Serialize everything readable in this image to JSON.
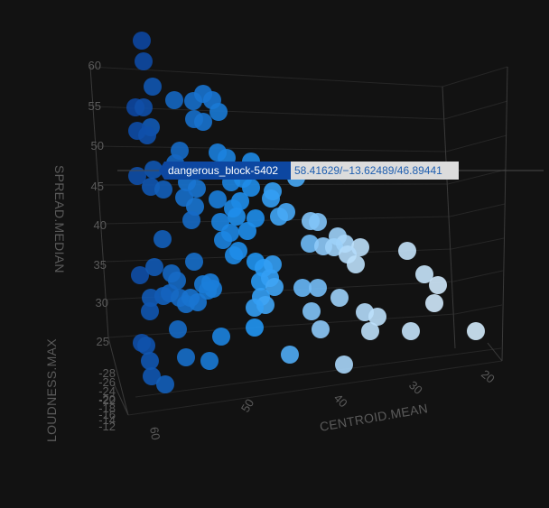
{
  "chart_data": {
    "type": "scatter",
    "dimensions": "3d",
    "x_axis": {
      "label": "CENTROID.MEAN",
      "ticks": [
        "60",
        "50",
        "40",
        "30",
        "20"
      ]
    },
    "y_axis": {
      "label": "LOUDNESS.MAX",
      "ticks": [
        "-28",
        "-26",
        "-24",
        "-22",
        "-20",
        "-18",
        "-16",
        "-14",
        "-12"
      ]
    },
    "z_axis": {
      "label": "SPREAD.MEDIAN",
      "ticks": [
        "60",
        "55",
        "50",
        "45",
        "40",
        "35",
        "30",
        "25"
      ]
    },
    "color_scale": {
      "low": "#0d47a1",
      "mid": "#2196f3",
      "high": "#e3f2fd"
    },
    "hover": {
      "name": "dangerous_block-5402",
      "value": "58.41629/−13.62489/46.89441",
      "name_bg": "#0d47a1",
      "value_bg": "#dcdcdc"
    },
    "points": [
      {
        "sx": 157,
        "sy": 45,
        "c": 0.0
      },
      {
        "sx": 159,
        "sy": 68,
        "c": 0.02
      },
      {
        "sx": 169,
        "sy": 96,
        "c": 0.1
      },
      {
        "sx": 150,
        "sy": 119,
        "c": 0.0
      },
      {
        "sx": 159,
        "sy": 119,
        "c": 0.05
      },
      {
        "sx": 167,
        "sy": 141,
        "c": 0.12
      },
      {
        "sx": 152,
        "sy": 145,
        "c": 0.03
      },
      {
        "sx": 163,
        "sy": 150,
        "c": 0.06
      },
      {
        "sx": 193,
        "sy": 111,
        "c": 0.2
      },
      {
        "sx": 214,
        "sy": 112,
        "c": 0.25
      },
      {
        "sx": 225,
        "sy": 104,
        "c": 0.28
      },
      {
        "sx": 235,
        "sy": 111,
        "c": 0.3
      },
      {
        "sx": 242,
        "sy": 124,
        "c": 0.32
      },
      {
        "sx": 215,
        "sy": 132,
        "c": 0.25
      },
      {
        "sx": 225,
        "sy": 135,
        "c": 0.28
      },
      {
        "sx": 199,
        "sy": 167,
        "c": 0.22
      },
      {
        "sx": 194,
        "sy": 181,
        "c": 0.2
      },
      {
        "sx": 241,
        "sy": 169,
        "c": 0.35
      },
      {
        "sx": 251,
        "sy": 175,
        "c": 0.38
      },
      {
        "sx": 278,
        "sy": 179,
        "c": 0.42
      },
      {
        "sx": 152,
        "sy": 195,
        "c": 0.05
      },
      {
        "sx": 170,
        "sy": 188,
        "c": 0.1
      },
      {
        "sx": 167,
        "sy": 207,
        "c": 0.1
      },
      {
        "sx": 181,
        "sy": 210,
        "c": 0.15
      },
      {
        "sx": 207,
        "sy": 202,
        "c": 0.28
      },
      {
        "sx": 218,
        "sy": 209,
        "c": 0.3
      },
      {
        "sx": 204,
        "sy": 219,
        "c": 0.25
      },
      {
        "sx": 216,
        "sy": 229,
        "c": 0.3
      },
      {
        "sx": 212,
        "sy": 244,
        "c": 0.22
      },
      {
        "sx": 241,
        "sy": 221,
        "c": 0.35
      },
      {
        "sx": 256,
        "sy": 202,
        "c": 0.38
      },
      {
        "sx": 269,
        "sy": 198,
        "c": 0.42
      },
      {
        "sx": 278,
        "sy": 208,
        "c": 0.44
      },
      {
        "sx": 266,
        "sy": 223,
        "c": 0.45
      },
      {
        "sx": 258,
        "sy": 231,
        "c": 0.42
      },
      {
        "sx": 262,
        "sy": 240,
        "c": 0.45
      },
      {
        "sx": 244,
        "sy": 246,
        "c": 0.38
      },
      {
        "sx": 283,
        "sy": 242,
        "c": 0.45
      },
      {
        "sx": 302,
        "sy": 212,
        "c": 0.55
      },
      {
        "sx": 300,
        "sy": 220,
        "c": 0.55
      },
      {
        "sx": 309,
        "sy": 240,
        "c": 0.58
      },
      {
        "sx": 317,
        "sy": 235,
        "c": 0.6
      },
      {
        "sx": 328,
        "sy": 197,
        "c": 0.6
      },
      {
        "sx": 180,
        "sy": 265,
        "c": 0.15
      },
      {
        "sx": 247,
        "sy": 266,
        "c": 0.38
      },
      {
        "sx": 255,
        "sy": 258,
        "c": 0.4
      },
      {
        "sx": 274,
        "sy": 256,
        "c": 0.45
      },
      {
        "sx": 259,
        "sy": 283,
        "c": 0.42
      },
      {
        "sx": 264,
        "sy": 278,
        "c": 0.44
      },
      {
        "sx": 215,
        "sy": 290,
        "c": 0.25
      },
      {
        "sx": 344,
        "sy": 245,
        "c": 0.75
      },
      {
        "sx": 352,
        "sy": 246,
        "c": 0.75
      },
      {
        "sx": 343,
        "sy": 270,
        "c": 0.7
      },
      {
        "sx": 358,
        "sy": 273,
        "c": 0.78
      },
      {
        "sx": 374,
        "sy": 262,
        "c": 0.82
      },
      {
        "sx": 382,
        "sy": 270,
        "c": 0.85
      },
      {
        "sx": 370,
        "sy": 274,
        "c": 0.82
      },
      {
        "sx": 399,
        "sy": 274,
        "c": 0.9
      },
      {
        "sx": 385,
        "sy": 282,
        "c": 0.88
      },
      {
        "sx": 394,
        "sy": 293,
        "c": 0.9
      },
      {
        "sx": 451,
        "sy": 278,
        "c": 0.92
      },
      {
        "sx": 470,
        "sy": 304,
        "c": 0.93
      },
      {
        "sx": 485,
        "sy": 316,
        "c": 0.95
      },
      {
        "sx": 481,
        "sy": 336,
        "c": 0.95
      },
      {
        "sx": 155,
        "sy": 305,
        "c": 0.05
      },
      {
        "sx": 171,
        "sy": 296,
        "c": 0.12
      },
      {
        "sx": 190,
        "sy": 303,
        "c": 0.2
      },
      {
        "sx": 196,
        "sy": 311,
        "c": 0.22
      },
      {
        "sx": 188,
        "sy": 325,
        "c": 0.2
      },
      {
        "sx": 181,
        "sy": 328,
        "c": 0.18
      },
      {
        "sx": 167,
        "sy": 330,
        "c": 0.12
      },
      {
        "sx": 166,
        "sy": 345,
        "c": 0.1
      },
      {
        "sx": 199,
        "sy": 330,
        "c": 0.22
      },
      {
        "sx": 206,
        "sy": 337,
        "c": 0.25
      },
      {
        "sx": 211,
        "sy": 330,
        "c": 0.28
      },
      {
        "sx": 219,
        "sy": 335,
        "c": 0.3
      },
      {
        "sx": 230,
        "sy": 322,
        "c": 0.32
      },
      {
        "sx": 236,
        "sy": 320,
        "c": 0.35
      },
      {
        "sx": 225,
        "sy": 315,
        "c": 0.32
      },
      {
        "sx": 233,
        "sy": 313,
        "c": 0.35
      },
      {
        "sx": 283,
        "sy": 290,
        "c": 0.48
      },
      {
        "sx": 292,
        "sy": 297,
        "c": 0.52
      },
      {
        "sx": 302,
        "sy": 293,
        "c": 0.55
      },
      {
        "sx": 288,
        "sy": 312,
        "c": 0.52
      },
      {
        "sx": 299,
        "sy": 308,
        "c": 0.55
      },
      {
        "sx": 304,
        "sy": 318,
        "c": 0.58
      },
      {
        "sx": 289,
        "sy": 329,
        "c": 0.55
      },
      {
        "sx": 294,
        "sy": 338,
        "c": 0.58
      },
      {
        "sx": 282,
        "sy": 341,
        "c": 0.55
      },
      {
        "sx": 335,
        "sy": 319,
        "c": 0.68
      },
      {
        "sx": 352,
        "sy": 319,
        "c": 0.72
      },
      {
        "sx": 376,
        "sy": 330,
        "c": 0.82
      },
      {
        "sx": 345,
        "sy": 345,
        "c": 0.75
      },
      {
        "sx": 355,
        "sy": 365,
        "c": 0.78
      },
      {
        "sx": 404,
        "sy": 346,
        "c": 0.88
      },
      {
        "sx": 418,
        "sy": 351,
        "c": 0.9
      },
      {
        "sx": 410,
        "sy": 367,
        "c": 0.9
      },
      {
        "sx": 455,
        "sy": 367,
        "c": 0.92
      },
      {
        "sx": 527,
        "sy": 367,
        "c": 0.96
      },
      {
        "sx": 197,
        "sy": 365,
        "c": 0.22
      },
      {
        "sx": 245,
        "sy": 373,
        "c": 0.38
      },
      {
        "sx": 282,
        "sy": 363,
        "c": 0.5
      },
      {
        "sx": 157,
        "sy": 380,
        "c": 0.05
      },
      {
        "sx": 162,
        "sy": 383,
        "c": 0.07
      },
      {
        "sx": 166,
        "sy": 400,
        "c": 0.1
      },
      {
        "sx": 168,
        "sy": 417,
        "c": 0.1
      },
      {
        "sx": 183,
        "sy": 426,
        "c": 0.15
      },
      {
        "sx": 206,
        "sy": 396,
        "c": 0.25
      },
      {
        "sx": 232,
        "sy": 400,
        "c": 0.32
      },
      {
        "sx": 321,
        "sy": 393,
        "c": 0.62
      },
      {
        "sx": 381,
        "sy": 404,
        "c": 0.85
      }
    ]
  }
}
